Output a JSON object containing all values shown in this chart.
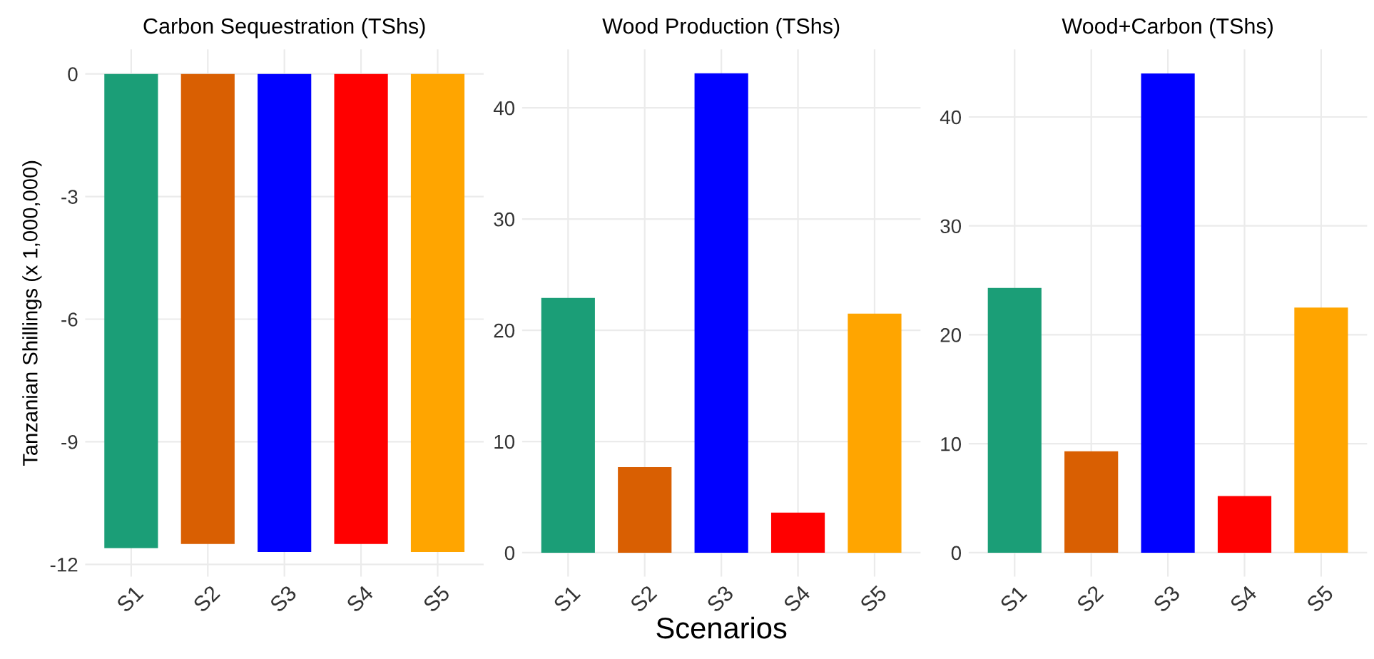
{
  "chart_data": [
    {
      "type": "bar",
      "title": "Carbon Sequestration (TShs)",
      "ylabel": "Tanzanian Shillings (x 1,000,000)",
      "categories": [
        "S1",
        "S2",
        "S3",
        "S4",
        "S5"
      ],
      "values": [
        -11.6,
        -11.5,
        -11.7,
        -11.5,
        -11.7
      ],
      "colors": [
        "#1b9e77",
        "#d95f02",
        "#0000ff",
        "#ff0000",
        "#ffa500"
      ],
      "ylim": [
        -12.3,
        0.6
      ],
      "yticks": [
        -12,
        -9,
        -6,
        -3,
        0
      ],
      "grid": true
    },
    {
      "type": "bar",
      "title": "Wood Production (TShs)",
      "xlabel": "Scenarios",
      "categories": [
        "S1",
        "S2",
        "S3",
        "S4",
        "S5"
      ],
      "values": [
        22.9,
        7.7,
        43.1,
        3.6,
        21.5
      ],
      "colors": [
        "#1b9e77",
        "#d95f02",
        "#0000ff",
        "#ff0000",
        "#ffa500"
      ],
      "ylim": [
        -2.15,
        45.25
      ],
      "yticks": [
        0,
        10,
        20,
        30,
        40
      ],
      "grid": true
    },
    {
      "type": "bar",
      "title": "Wood+Carbon (TShs)",
      "categories": [
        "S1",
        "S2",
        "S3",
        "S4",
        "S5"
      ],
      "values": [
        24.3,
        9.3,
        44.0,
        5.2,
        22.5
      ],
      "colors": [
        "#1b9e77",
        "#d95f02",
        "#0000ff",
        "#ff0000",
        "#ffa500"
      ],
      "ylim": [
        -2.2,
        46.2
      ],
      "yticks": [
        0,
        10,
        20,
        30,
        40
      ],
      "grid": true
    }
  ]
}
